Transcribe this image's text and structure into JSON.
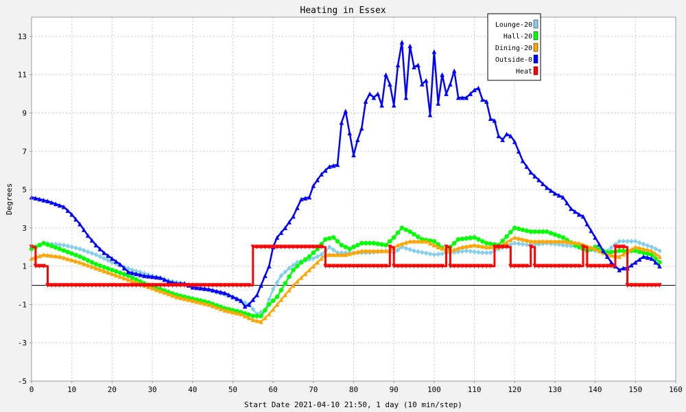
{
  "chart_data": {
    "type": "line",
    "title": "Heating in Essex",
    "xlabel": "Start Date 2021-04-10 21:50, 1 day (10 min/step)",
    "ylabel": "Degrees",
    "xlim": [
      0,
      160
    ],
    "ylim": [
      -5,
      14
    ],
    "x_ticks": [
      0,
      10,
      20,
      30,
      40,
      50,
      60,
      70,
      80,
      90,
      100,
      110,
      120,
      130,
      140,
      150,
      160
    ],
    "y_ticks": [
      -5,
      -3,
      -1,
      1,
      3,
      5,
      7,
      9,
      11,
      13
    ],
    "grid": true,
    "legend_position": "top-right",
    "series": [
      {
        "name": "Lounge-20",
        "color": "#87ceeb",
        "marker": "diamond",
        "points": [
          [
            0,
            1.9
          ],
          [
            3,
            2.2
          ],
          [
            8,
            2.1
          ],
          [
            12,
            1.9
          ],
          [
            16,
            1.6
          ],
          [
            20,
            1.2
          ],
          [
            25,
            0.8
          ],
          [
            30,
            0.5
          ],
          [
            35,
            0.2
          ],
          [
            40,
            0
          ],
          [
            45,
            -0.3
          ],
          [
            50,
            -0.6
          ],
          [
            54,
            -1.0
          ],
          [
            56,
            -1.5
          ],
          [
            58,
            -1.3
          ],
          [
            60,
            -0.2
          ],
          [
            62,
            0.5
          ],
          [
            64,
            0.9
          ],
          [
            66,
            1.2
          ],
          [
            68,
            1.3
          ],
          [
            70,
            1.4
          ],
          [
            72,
            1.6
          ],
          [
            74,
            2.0
          ],
          [
            76,
            1.7
          ],
          [
            80,
            1.7
          ],
          [
            84,
            1.7
          ],
          [
            88,
            1.8
          ],
          [
            90,
            1.7
          ],
          [
            92,
            2.0
          ],
          [
            95,
            1.8
          ],
          [
            100,
            1.6
          ],
          [
            104,
            1.7
          ],
          [
            108,
            1.8
          ],
          [
            112,
            1.7
          ],
          [
            114,
            1.7
          ],
          [
            116,
            1.9
          ],
          [
            120,
            2.2
          ],
          [
            124,
            2.1
          ],
          [
            128,
            2.2
          ],
          [
            132,
            2.1
          ],
          [
            136,
            2.0
          ],
          [
            140,
            1.8
          ],
          [
            143,
            1.8
          ],
          [
            146,
            2.3
          ],
          [
            150,
            2.3
          ],
          [
            154,
            2.0
          ],
          [
            156,
            1.8
          ]
        ]
      },
      {
        "name": "Hall-20",
        "color": "#00ff00",
        "marker": "circle",
        "points": [
          [
            0,
            1.9
          ],
          [
            3,
            2.2
          ],
          [
            7,
            1.9
          ],
          [
            12,
            1.5
          ],
          [
            16,
            1.1
          ],
          [
            20,
            0.8
          ],
          [
            24,
            0.5
          ],
          [
            28,
            0.1
          ],
          [
            32,
            -0.2
          ],
          [
            36,
            -0.5
          ],
          [
            40,
            -0.7
          ],
          [
            44,
            -0.9
          ],
          [
            48,
            -1.2
          ],
          [
            52,
            -1.4
          ],
          [
            55,
            -1.6
          ],
          [
            57,
            -1.6
          ],
          [
            59,
            -1.0
          ],
          [
            61,
            -0.6
          ],
          [
            63,
            0.1
          ],
          [
            65,
            0.8
          ],
          [
            67,
            1.2
          ],
          [
            69,
            1.5
          ],
          [
            71,
            1.9
          ],
          [
            73,
            2.4
          ],
          [
            75,
            2.5
          ],
          [
            77,
            2.1
          ],
          [
            79,
            1.9
          ],
          [
            82,
            2.2
          ],
          [
            85,
            2.2
          ],
          [
            88,
            2.1
          ],
          [
            90,
            2.5
          ],
          [
            92,
            3.0
          ],
          [
            94,
            2.8
          ],
          [
            97,
            2.4
          ],
          [
            100,
            2.3
          ],
          [
            103,
            1.8
          ],
          [
            106,
            2.4
          ],
          [
            110,
            2.5
          ],
          [
            113,
            2.2
          ],
          [
            116,
            2.1
          ],
          [
            120,
            3.0
          ],
          [
            124,
            2.8
          ],
          [
            128,
            2.8
          ],
          [
            132,
            2.5
          ],
          [
            135,
            2.1
          ],
          [
            138,
            1.8
          ],
          [
            140,
            2.0
          ],
          [
            143,
            1.7
          ],
          [
            146,
            1.8
          ],
          [
            150,
            1.8
          ],
          [
            154,
            1.6
          ],
          [
            156,
            1.2
          ]
        ]
      },
      {
        "name": "Dining-20",
        "color": "#ffa500",
        "marker": "triangle",
        "points": [
          [
            0,
            1.4
          ],
          [
            3,
            1.6
          ],
          [
            7,
            1.5
          ],
          [
            12,
            1.2
          ],
          [
            16,
            0.9
          ],
          [
            20,
            0.6
          ],
          [
            24,
            0.3
          ],
          [
            28,
            0
          ],
          [
            32,
            -0.3
          ],
          [
            36,
            -0.6
          ],
          [
            40,
            -0.8
          ],
          [
            44,
            -1.0
          ],
          [
            48,
            -1.3
          ],
          [
            52,
            -1.5
          ],
          [
            55,
            -1.8
          ],
          [
            57,
            -1.9
          ],
          [
            59,
            -1.5
          ],
          [
            61,
            -1.0
          ],
          [
            63,
            -0.5
          ],
          [
            65,
            0
          ],
          [
            67,
            0.4
          ],
          [
            69,
            0.8
          ],
          [
            71,
            1.2
          ],
          [
            73,
            1.6
          ],
          [
            75,
            1.6
          ],
          [
            78,
            1.6
          ],
          [
            82,
            1.8
          ],
          [
            86,
            1.8
          ],
          [
            89,
            1.8
          ],
          [
            91,
            2.1
          ],
          [
            94,
            2.3
          ],
          [
            98,
            2.3
          ],
          [
            101,
            2.0
          ],
          [
            104,
            1.8
          ],
          [
            107,
            2.0
          ],
          [
            110,
            2.1
          ],
          [
            113,
            2.0
          ],
          [
            116,
            2.0
          ],
          [
            120,
            2.5
          ],
          [
            124,
            2.3
          ],
          [
            128,
            2.3
          ],
          [
            132,
            2.3
          ],
          [
            136,
            2.2
          ],
          [
            140,
            1.9
          ],
          [
            143,
            1.6
          ],
          [
            146,
            1.5
          ],
          [
            150,
            2.0
          ],
          [
            154,
            1.8
          ],
          [
            156,
            1.5
          ]
        ]
      },
      {
        "name": "Outside-0",
        "color": "#0000ff",
        "marker": "triangle",
        "points": [
          [
            0,
            4.6
          ],
          [
            4,
            4.4
          ],
          [
            8,
            4.1
          ],
          [
            10,
            3.7
          ],
          [
            12,
            3.2
          ],
          [
            14,
            2.6
          ],
          [
            16,
            2.1
          ],
          [
            18,
            1.7
          ],
          [
            20,
            1.4
          ],
          [
            22,
            1.1
          ],
          [
            24,
            0.7
          ],
          [
            28,
            0.5
          ],
          [
            32,
            0.4
          ],
          [
            34,
            0.2
          ],
          [
            36,
            0.1
          ],
          [
            38,
            0.1
          ],
          [
            40,
            -0.1
          ],
          [
            44,
            -0.2
          ],
          [
            48,
            -0.4
          ],
          [
            50,
            -0.6
          ],
          [
            52,
            -0.8
          ],
          [
            53,
            -1.1
          ],
          [
            54,
            -1.0
          ],
          [
            56,
            -0.5
          ],
          [
            58,
            0.5
          ],
          [
            59,
            1.0
          ],
          [
            60,
            2.0
          ],
          [
            61,
            2.5
          ],
          [
            63,
            3.0
          ],
          [
            65,
            3.6
          ],
          [
            67,
            4.5
          ],
          [
            69,
            4.6
          ],
          [
            70,
            5.2
          ],
          [
            72,
            5.8
          ],
          [
            74,
            6.2
          ],
          [
            76,
            6.3
          ],
          [
            77,
            8.5
          ],
          [
            78,
            9.1
          ],
          [
            80,
            6.8
          ],
          [
            81,
            7.6
          ],
          [
            82,
            8.2
          ],
          [
            83,
            9.6
          ],
          [
            84,
            10.0
          ],
          [
            85,
            9.8
          ],
          [
            86,
            10.0
          ],
          [
            87,
            9.4
          ],
          [
            88,
            11.0
          ],
          [
            89,
            10.5
          ],
          [
            90,
            9.4
          ],
          [
            91,
            11.5
          ],
          [
            92,
            12.7
          ],
          [
            93,
            9.8
          ],
          [
            94,
            12.5
          ],
          [
            95,
            11.4
          ],
          [
            96,
            11.5
          ],
          [
            97,
            10.5
          ],
          [
            98,
            10.7
          ],
          [
            99,
            8.9
          ],
          [
            100,
            12.2
          ],
          [
            101,
            9.5
          ],
          [
            102,
            11.0
          ],
          [
            103,
            10.0
          ],
          [
            104,
            10.5
          ],
          [
            105,
            11.2
          ],
          [
            106,
            9.8
          ],
          [
            108,
            9.8
          ],
          [
            110,
            10.2
          ],
          [
            111,
            10.3
          ],
          [
            112,
            9.7
          ],
          [
            113,
            9.6
          ],
          [
            114,
            8.7
          ],
          [
            115,
            8.6
          ],
          [
            116,
            7.8
          ],
          [
            117,
            7.6
          ],
          [
            118,
            7.9
          ],
          [
            119,
            7.8
          ],
          [
            120,
            7.5
          ],
          [
            122,
            6.5
          ],
          [
            124,
            5.9
          ],
          [
            126,
            5.5
          ],
          [
            128,
            5.1
          ],
          [
            130,
            4.8
          ],
          [
            132,
            4.6
          ],
          [
            134,
            4.0
          ],
          [
            136,
            3.7
          ],
          [
            137,
            3.6
          ],
          [
            138,
            3.2
          ],
          [
            140,
            2.5
          ],
          [
            142,
            1.8
          ],
          [
            144,
            1.2
          ],
          [
            146,
            0.8
          ],
          [
            147,
            0.9
          ],
          [
            148,
            0.9
          ],
          [
            150,
            1.2
          ],
          [
            152,
            1.5
          ],
          [
            154,
            1.4
          ],
          [
            156,
            1.0
          ]
        ]
      },
      {
        "name": "Heat",
        "color": "#ff0000",
        "marker": "triangle-down",
        "points": [
          [
            0,
            2.0
          ],
          [
            1,
            1.0
          ],
          [
            3,
            1.0
          ],
          [
            4,
            0
          ],
          [
            54,
            0
          ],
          [
            55,
            2.0
          ],
          [
            72,
            2.0
          ],
          [
            73,
            1.0
          ],
          [
            88,
            1.0
          ],
          [
            89,
            2.0
          ],
          [
            90,
            1.0
          ],
          [
            102,
            1.0
          ],
          [
            103,
            2.0
          ],
          [
            104,
            1.0
          ],
          [
            114,
            1.0
          ],
          [
            115,
            2.0
          ],
          [
            118,
            2.0
          ],
          [
            119,
            1.0
          ],
          [
            123,
            1.0
          ],
          [
            124,
            2.0
          ],
          [
            125,
            1.0
          ],
          [
            136,
            1.0
          ],
          [
            137,
            2.0
          ],
          [
            138,
            1.0
          ],
          [
            144,
            1.0
          ],
          [
            145,
            2.0
          ],
          [
            147,
            2.0
          ],
          [
            148,
            0
          ],
          [
            156,
            0
          ]
        ]
      }
    ]
  }
}
